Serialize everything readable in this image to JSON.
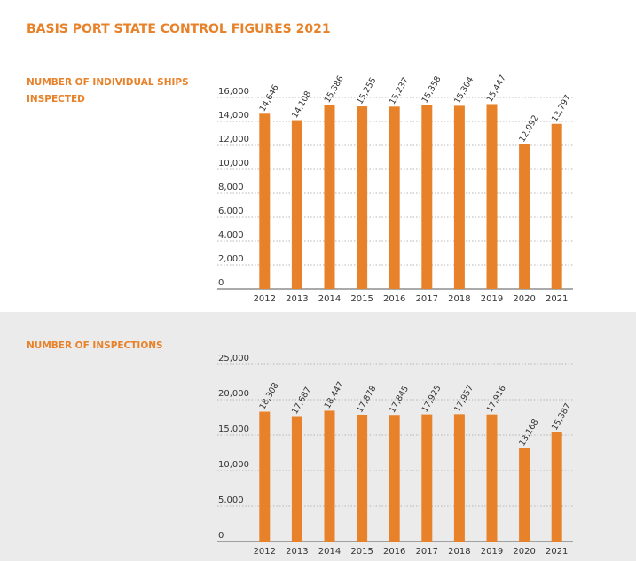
{
  "title": "BASIS PORT STATE CONTROL FIGURES 2021",
  "chart_data": [
    {
      "type": "bar",
      "title": "NUMBER OF INDIVIDUAL SHIPS INSPECTED",
      "categories": [
        "2012",
        "2013",
        "2014",
        "2015",
        "2016",
        "2017",
        "2018",
        "2019",
        "2020",
        "2021"
      ],
      "values": [
        14646,
        14108,
        15386,
        15255,
        15237,
        15358,
        15304,
        15447,
        12092,
        13797
      ],
      "value_labels": [
        "14,646",
        "14,108",
        "15,386",
        "15,255",
        "15,237",
        "15,358",
        "15,304",
        "15,447",
        "12,092",
        "13,797"
      ],
      "color": "#e8822a",
      "ylim": [
        0,
        16000
      ],
      "yticks": [
        0,
        {
          "value": 2000,
          "label": "2,000"
        },
        {
          "value": 4000,
          "label": "4,000"
        },
        {
          "value": 6000,
          "label": "6,000"
        },
        {
          "value": 8000,
          "label": "8,000"
        },
        {
          "value": 10000,
          "label": "10,000"
        },
        {
          "value": 12000,
          "label": "12,000"
        },
        {
          "value": 14000,
          "label": "14,000"
        },
        {
          "value": 16000,
          "label": "16,000"
        }
      ],
      "grid": true
    },
    {
      "type": "bar",
      "title": "NUMBER OF INSPECTIONS",
      "categories": [
        "2012",
        "2013",
        "2014",
        "2015",
        "2016",
        "2017",
        "2018",
        "2019",
        "2020",
        "2021"
      ],
      "values": [
        18308,
        17687,
        18447,
        17878,
        17845,
        17925,
        17957,
        17916,
        13168,
        15387
      ],
      "value_labels": [
        "18,308",
        "17,687",
        "18,447",
        "17,878",
        "17,845",
        "17,925",
        "17,957",
        "17,916",
        "13,168",
        "15,387"
      ],
      "color": "#e8822a",
      "ylim": [
        0,
        25000
      ],
      "yticks": [
        0,
        {
          "value": 5000,
          "label": "5,000"
        },
        {
          "value": 10000,
          "label": "10,000"
        },
        {
          "value": 15000,
          "label": "15,000"
        },
        {
          "value": 20000,
          "label": "20,000"
        },
        {
          "value": 25000,
          "label": "25,000"
        }
      ],
      "grid": true
    }
  ]
}
